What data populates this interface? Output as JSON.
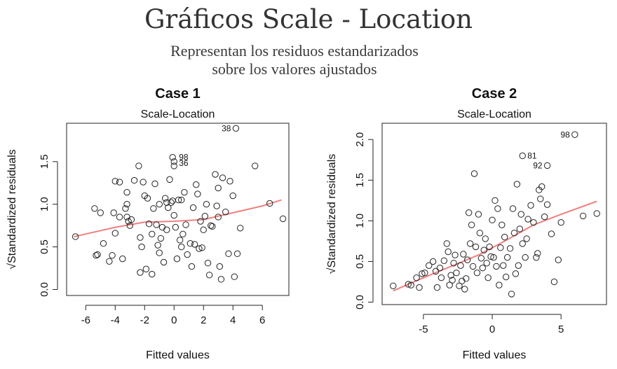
{
  "header": {
    "title": "Gráficos Scale - Location",
    "subtitle_line1": "Representan los residuos estandarizados",
    "subtitle_line2": "sobre los valores ajustados"
  },
  "chart_data": [
    {
      "type": "scatter",
      "case_title": "Case 1",
      "title": "Scale-Location",
      "xlabel": "Fitted values",
      "ylabel": "√Standardized residuals",
      "xlim": [
        -7.3,
        7.8
      ],
      "ylim": [
        -0.07,
        1.95
      ],
      "xticks": [
        -6,
        -4,
        -2,
        0,
        2,
        4,
        6
      ],
      "yticks": [
        0.0,
        0.5,
        1.0,
        1.5
      ],
      "smooth_color": "#f08080",
      "smooth": [
        [
          -6.8,
          0.62
        ],
        [
          -4,
          0.73
        ],
        [
          -2,
          0.79
        ],
        [
          0,
          0.8
        ],
        [
          2,
          0.82
        ],
        [
          4,
          0.9
        ],
        [
          6,
          0.98
        ],
        [
          7.3,
          1.05
        ]
      ],
      "points": [
        [
          -6.7,
          0.62
        ],
        [
          -5.4,
          0.95
        ],
        [
          -5.3,
          0.4
        ],
        [
          -5.2,
          0.41
        ],
        [
          -5.0,
          0.9
        ],
        [
          -4.8,
          0.54
        ],
        [
          -4.4,
          0.33
        ],
        [
          -4.2,
          0.4
        ],
        [
          -4.1,
          0.9
        ],
        [
          -4.0,
          1.27
        ],
        [
          -4.0,
          0.66
        ],
        [
          -3.7,
          1.26
        ],
        [
          -3.7,
          0.85
        ],
        [
          -3.5,
          0.36
        ],
        [
          -3.3,
          0.95
        ],
        [
          -3.2,
          1.14
        ],
        [
          -3.2,
          1.0
        ],
        [
          -3.2,
          0.85
        ],
        [
          -3.1,
          0.8
        ],
        [
          -3.0,
          0.75
        ],
        [
          -2.9,
          0.82
        ],
        [
          -2.7,
          1.28
        ],
        [
          -2.4,
          1.45
        ],
        [
          -2.3,
          0.2
        ],
        [
          -2.3,
          0.61
        ],
        [
          -2.2,
          0.5
        ],
        [
          -2.1,
          1.26
        ],
        [
          -2.0,
          1.1
        ],
        [
          -1.9,
          0.24
        ],
        [
          -1.8,
          1.07
        ],
        [
          -1.7,
          0.77
        ],
        [
          -1.5,
          0.65
        ],
        [
          -1.5,
          0.18
        ],
        [
          -1.4,
          0.95
        ],
        [
          -1.3,
          1.24
        ],
        [
          -1.2,
          0.76
        ],
        [
          -1.1,
          0.52
        ],
        [
          -1.0,
          0.43
        ],
        [
          -1.0,
          1.0
        ],
        [
          -0.9,
          0.6
        ],
        [
          -0.8,
          0.73
        ],
        [
          -0.7,
          0.32
        ],
        [
          -0.6,
          1.07
        ],
        [
          -0.5,
          1.02
        ],
        [
          -0.5,
          0.7
        ],
        [
          -0.4,
          0.96
        ],
        [
          -0.3,
          1.29
        ],
        [
          -0.2,
          1.02
        ],
        [
          -0.1,
          1.55
        ],
        [
          -0.1,
          1.04
        ],
        [
          0.0,
          1.5
        ],
        [
          0.0,
          0.87
        ],
        [
          0.1,
          0.73
        ],
        [
          0.2,
          0.36
        ],
        [
          0.3,
          1.05
        ],
        [
          0.4,
          0.58
        ],
        [
          0.5,
          0.5
        ],
        [
          0.5,
          1.05
        ],
        [
          0.6,
          0.65
        ],
        [
          0.7,
          1.14
        ],
        [
          0.8,
          0.76
        ],
        [
          0.9,
          0.41
        ],
        [
          1.1,
          0.54
        ],
        [
          1.2,
          0.27
        ],
        [
          1.3,
          0.96
        ],
        [
          1.4,
          0.53
        ],
        [
          1.5,
          1.23
        ],
        [
          1.6,
          1.12
        ],
        [
          1.7,
          0.48
        ],
        [
          1.8,
          0.8
        ],
        [
          1.9,
          0.49
        ],
        [
          2.0,
          0.7
        ],
        [
          2.1,
          0.86
        ],
        [
          2.2,
          1.0
        ],
        [
          2.3,
          0.31
        ],
        [
          2.4,
          0.17
        ],
        [
          2.5,
          0.75
        ],
        [
          2.6,
          0.74
        ],
        [
          2.8,
          1.35
        ],
        [
          2.9,
          0.98
        ],
        [
          3.0,
          1.19
        ],
        [
          3.0,
          0.85
        ],
        [
          3.1,
          0.27
        ],
        [
          3.2,
          0.12
        ],
        [
          3.3,
          1.31
        ],
        [
          3.5,
          0.91
        ],
        [
          3.7,
          0.42
        ],
        [
          3.8,
          1.27
        ],
        [
          4.0,
          1.1
        ],
        [
          4.1,
          0.15
        ],
        [
          4.3,
          0.42
        ],
        [
          4.5,
          0.72
        ],
        [
          5.5,
          1.45
        ],
        [
          6.5,
          1.01
        ],
        [
          7.4,
          0.83
        ],
        [
          4.2,
          1.89
        ],
        [
          0.0,
          1.45
        ]
      ],
      "point_labels": [
        {
          "text": "38",
          "x": 4.2,
          "y": 1.89,
          "side": "left"
        },
        {
          "text": "98",
          "x": 0.0,
          "y": 1.55,
          "side": "right"
        },
        {
          "text": "36",
          "x": 0.0,
          "y": 1.48,
          "side": "right"
        }
      ]
    },
    {
      "type": "scatter",
      "case_title": "Case 2",
      "title": "Scale-Location",
      "xlabel": "Fitted values",
      "ylabel": "√Standardized residuals",
      "xlim": [
        -8.0,
        8.3
      ],
      "ylim": [
        -0.03,
        2.2
      ],
      "xticks": [
        -5,
        0,
        5
      ],
      "yticks": [
        0.0,
        0.5,
        1.0,
        1.5,
        2.0
      ],
      "smooth_color": "#f08080",
      "smooth": [
        [
          -7.2,
          0.14
        ],
        [
          -5,
          0.3
        ],
        [
          -3,
          0.44
        ],
        [
          -1,
          0.58
        ],
        [
          1,
          0.76
        ],
        [
          3,
          0.95
        ],
        [
          5,
          1.08
        ],
        [
          7.6,
          1.24
        ]
      ],
      "points": [
        [
          -7.2,
          0.2
        ],
        [
          -6.1,
          0.22
        ],
        [
          -5.9,
          0.21
        ],
        [
          -5.5,
          0.3
        ],
        [
          -5.3,
          0.18
        ],
        [
          -5.1,
          0.35
        ],
        [
          -4.9,
          0.36
        ],
        [
          -4.6,
          0.45
        ],
        [
          -4.3,
          0.5
        ],
        [
          -4.1,
          0.38
        ],
        [
          -4.0,
          0.18
        ],
        [
          -3.8,
          0.42
        ],
        [
          -3.7,
          0.3
        ],
        [
          -3.5,
          0.51
        ],
        [
          -3.3,
          0.72
        ],
        [
          -3.2,
          0.62
        ],
        [
          -3.1,
          0.21
        ],
        [
          -3.0,
          0.33
        ],
        [
          -2.9,
          0.27
        ],
        [
          -2.8,
          0.48
        ],
        [
          -2.7,
          0.58
        ],
        [
          -2.6,
          0.36
        ],
        [
          -2.4,
          0.2
        ],
        [
          -2.3,
          0.45
        ],
        [
          -2.2,
          0.26
        ],
        [
          -2.1,
          0.59
        ],
        [
          -2.0,
          0.16
        ],
        [
          -1.9,
          0.29
        ],
        [
          -1.8,
          0.52
        ],
        [
          -1.7,
          1.1
        ],
        [
          -1.6,
          0.72
        ],
        [
          -1.5,
          0.95
        ],
        [
          -1.4,
          0.44
        ],
        [
          -1.3,
          1.58
        ],
        [
          -1.2,
          0.68
        ],
        [
          -1.1,
          0.36
        ],
        [
          -1.0,
          1.08
        ],
        [
          -0.9,
          0.85
        ],
        [
          -0.8,
          0.54
        ],
        [
          -0.7,
          0.42
        ],
        [
          -0.6,
          0.64
        ],
        [
          -0.5,
          0.78
        ],
        [
          -0.4,
          0.48
        ],
        [
          -0.3,
          0.3
        ],
        [
          -0.2,
          0.68
        ],
        [
          -0.1,
          0.56
        ],
        [
          0.0,
          1.01
        ],
        [
          0.1,
          0.55
        ],
        [
          0.2,
          1.25
        ],
        [
          0.3,
          0.44
        ],
        [
          0.4,
          1.15
        ],
        [
          0.5,
          0.21
        ],
        [
          0.6,
          0.67
        ],
        [
          0.7,
          0.95
        ],
        [
          0.8,
          0.45
        ],
        [
          0.9,
          0.8
        ],
        [
          1.0,
          0.31
        ],
        [
          1.1,
          0.55
        ],
        [
          1.3,
          0.66
        ],
        [
          1.4,
          0.1
        ],
        [
          1.5,
          1.15
        ],
        [
          1.6,
          0.85
        ],
        [
          1.7,
          0.35
        ],
        [
          1.8,
          1.45
        ],
        [
          1.9,
          0.45
        ],
        [
          2.0,
          0.9
        ],
        [
          2.1,
          1.08
        ],
        [
          2.2,
          0.72
        ],
        [
          2.4,
          0.55
        ],
        [
          2.5,
          0.78
        ],
        [
          2.6,
          1.02
        ],
        [
          2.8,
          1.19
        ],
        [
          3.0,
          0.98
        ],
        [
          3.2,
          0.55
        ],
        [
          3.3,
          0.6
        ],
        [
          3.4,
          1.38
        ],
        [
          3.5,
          1.27
        ],
        [
          3.6,
          1.42
        ],
        [
          3.8,
          1.05
        ],
        [
          4.0,
          1.2
        ],
        [
          4.3,
          0.84
        ],
        [
          4.5,
          0.25
        ],
        [
          4.8,
          0.52
        ],
        [
          5.0,
          0.98
        ],
        [
          6.6,
          1.06
        ],
        [
          7.6,
          1.09
        ],
        [
          6.0,
          2.06
        ],
        [
          2.2,
          1.8
        ],
        [
          4.0,
          1.68
        ]
      ],
      "point_labels": [
        {
          "text": "98",
          "x": 6.0,
          "y": 2.06,
          "side": "left"
        },
        {
          "text": "81",
          "x": 2.2,
          "y": 1.8,
          "side": "right"
        },
        {
          "text": "92",
          "x": 4.0,
          "y": 1.68,
          "side": "left"
        }
      ]
    }
  ]
}
